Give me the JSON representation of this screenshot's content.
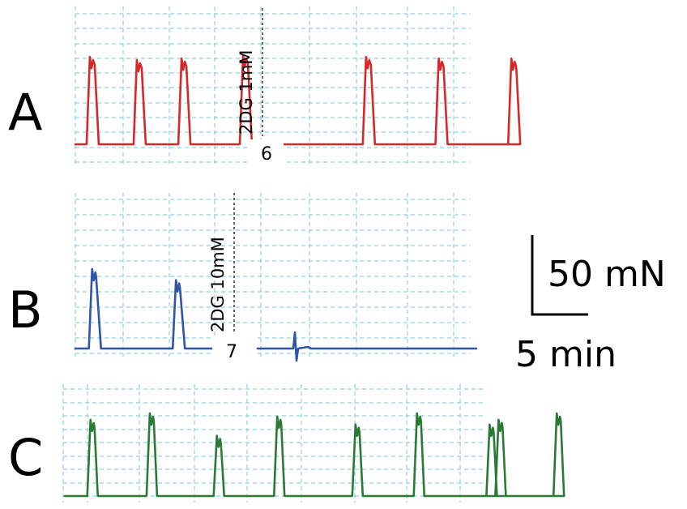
{
  "chart_data": [
    {
      "type": "line",
      "panel": "A",
      "color": "#d62828",
      "annotation": "2DG 1mM",
      "marker": "6",
      "baseline_mN": 0,
      "contraction_times_min": [
        1.3,
        5.5,
        9.5,
        15.0,
        26.0,
        32.5,
        39.0
      ],
      "peak_amplitudes_mN": [
        55,
        53,
        54,
        56,
        55,
        54,
        54
      ],
      "drug_added_at_min": 20.5,
      "time_range_min": [
        0,
        42
      ]
    },
    {
      "type": "line",
      "panel": "B",
      "color": "#3155a6",
      "annotation": "2DG 10mM",
      "marker": "7",
      "baseline_mN": 0,
      "contraction_times_min": [
        1.5,
        9.0
      ],
      "peak_amplitudes_mN": [
        50,
        43
      ],
      "drug_added_at_min": 17.0,
      "time_range_min": [
        0,
        42
      ]
    },
    {
      "type": "line",
      "panel": "C",
      "color": "#2a7a35",
      "annotation": "",
      "marker": "",
      "baseline_mN": 0,
      "contraction_times_min": [
        2.3,
        7.6,
        13.6,
        19.0,
        26.0,
        31.5,
        38.0,
        38.8,
        44.0
      ],
      "peak_amplitudes_mN": [
        48,
        52,
        38,
        50,
        45,
        52,
        45,
        48,
        52
      ],
      "time_range_min": [
        0,
        45
      ]
    }
  ],
  "labels": {
    "panel_a": "A",
    "panel_b": "B",
    "panel_c": "C"
  },
  "scale_bar": {
    "force_label": "50 mN",
    "time_label": "5 min",
    "force_mN": 50,
    "time_min": 5
  }
}
